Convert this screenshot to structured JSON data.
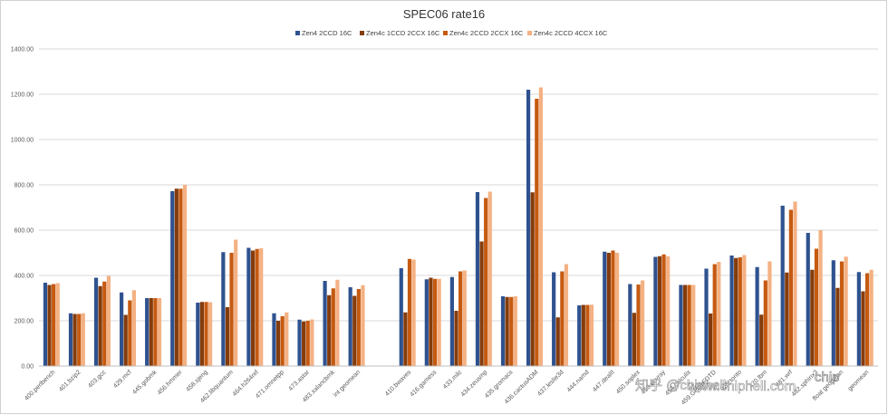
{
  "chart_data": {
    "type": "bar",
    "title": "SPEC06 rate16",
    "xlabel": "",
    "ylabel": "",
    "ylim": [
      0,
      1400
    ],
    "yticks": [
      "0.00",
      "200.00",
      "400.00",
      "600.00",
      "800.00",
      "1000.00",
      "1200.00",
      "1400.00"
    ],
    "grid": true,
    "legend_position": "top-center",
    "categories": [
      "400.perlbench",
      "401.bzip2",
      "403.gcc",
      "429.mcf",
      "445.gobmk",
      "456.hmmer",
      "458.sjeng",
      "462.libquantum",
      "464.h264ref",
      "471.omnetpp",
      "473.astar",
      "483.xalancbmk",
      "int geomean",
      "",
      "410.bwaves",
      "416.gamess",
      "433.milc",
      "434.zeusmp",
      "435.gromacs",
      "436.cactusADM",
      "437.leslie3d",
      "444.namd",
      "447.dealII",
      "450.soplex",
      "453.povray",
      "454.calculix",
      "459.GemsFDTD",
      "465.tonto",
      "470.lbm",
      "481.wrf",
      "482.sphinx3",
      "float geomean",
      "geomean"
    ],
    "series": [
      {
        "name": "Zen4 2CCD 16C",
        "color": "#2f528f",
        "values": [
          368,
          233,
          390,
          325,
          300,
          772,
          280,
          503,
          522,
          233,
          205,
          376,
          348,
          null,
          432,
          383,
          393,
          768,
          308,
          1220,
          414,
          268,
          505,
          362,
          482,
          358,
          430,
          488,
          437,
          708,
          588,
          467,
          415
        ]
      },
      {
        "name": "Zen4c 1CCD 2CCX 16C",
        "color": "#843c0c",
        "values": [
          358,
          230,
          353,
          226,
          300,
          783,
          283,
          260,
          510,
          200,
          197,
          313,
          310,
          null,
          237,
          390,
          244,
          550,
          305,
          767,
          215,
          270,
          500,
          235,
          485,
          358,
          232,
          477,
          227,
          413,
          425,
          345,
          330
        ]
      },
      {
        "name": "Zen4c 2CCD 2CCX 16C",
        "color": "#c55a11",
        "values": [
          362,
          230,
          373,
          290,
          300,
          783,
          283,
          500,
          517,
          220,
          200,
          343,
          340,
          null,
          473,
          385,
          418,
          742,
          305,
          1180,
          418,
          270,
          510,
          360,
          493,
          358,
          450,
          480,
          378,
          690,
          518,
          462,
          410
        ]
      },
      {
        "name": "Zen4c 2CCD 4CCX 16C",
        "color": "#f4b183",
        "values": [
          366,
          233,
          398,
          335,
          300,
          800,
          282,
          558,
          520,
          237,
          206,
          381,
          357,
          null,
          470,
          385,
          422,
          770,
          308,
          1230,
          450,
          271,
          500,
          378,
          485,
          358,
          460,
          490,
          462,
          726,
          600,
          483,
          425
        ]
      }
    ]
  },
  "watermark": {
    "text": "知乎 @chiphell",
    "url_text": "www.chiphell.com",
    "logo_text": "chip"
  }
}
